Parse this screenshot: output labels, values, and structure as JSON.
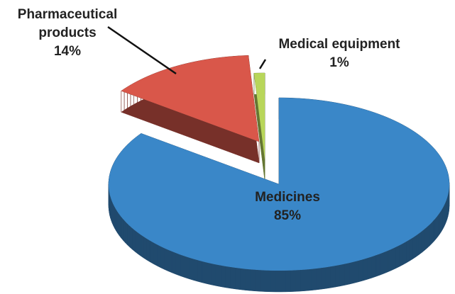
{
  "chart_data": {
    "type": "pie",
    "categories": [
      "Medicines",
      "Pharmaceutical products",
      "Medical equipment"
    ],
    "values": [
      85,
      14,
      1
    ],
    "value_labels": [
      "85%",
      "14%",
      "1%"
    ],
    "colors": [
      "#3a87c8",
      "#d9574a",
      "#b8d65a"
    ]
  }
}
